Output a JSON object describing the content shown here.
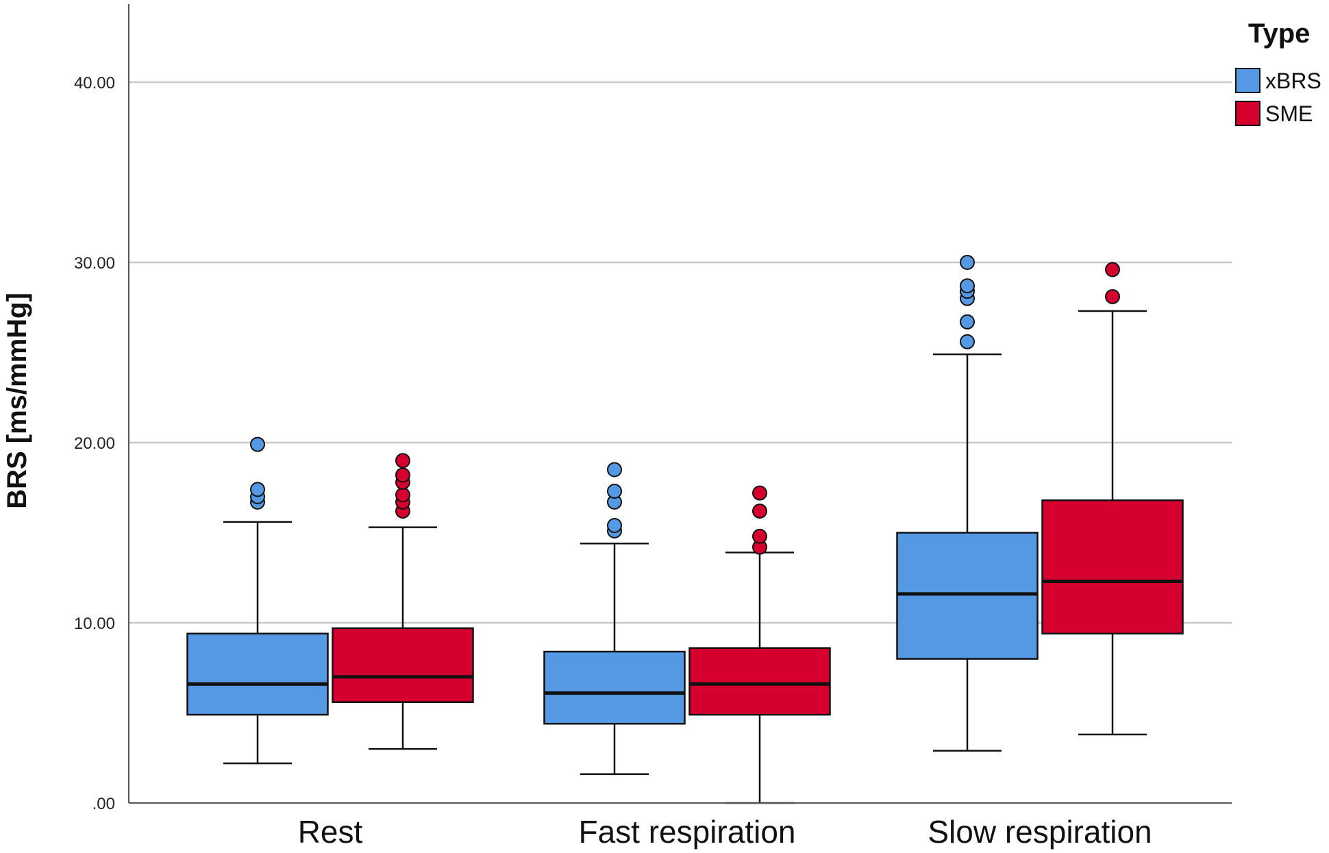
{
  "chart_data": {
    "type": "boxplot",
    "ylabel": "BRS [ms/mmHg]",
    "xlabel": "",
    "ylim": [
      0,
      44
    ],
    "yticks": [
      0,
      10,
      20,
      30,
      40
    ],
    "ytick_labels": [
      ".00",
      "10.00",
      "20.00",
      "30.00",
      "40.00"
    ],
    "grid": "horizontal",
    "legend": {
      "title": "Type",
      "position": "top-right",
      "entries": [
        {
          "label": "xBRS",
          "color": "#5599e4"
        },
        {
          "label": "SME",
          "color": "#d6002f"
        }
      ]
    },
    "categories": [
      "Rest",
      "Fast respiration",
      "Slow respiration"
    ],
    "series": [
      {
        "name": "xBRS",
        "color": "#5599e4",
        "boxes": [
          {
            "whisker_low": 2.2,
            "q1": 4.9,
            "median": 6.6,
            "q3": 9.4,
            "whisker_high": 15.6,
            "outliers": [
              16.7,
              17.0,
              17.4,
              19.9
            ]
          },
          {
            "whisker_low": 1.6,
            "q1": 4.4,
            "median": 6.1,
            "q3": 8.4,
            "whisker_high": 14.4,
            "outliers": [
              15.1,
              15.4,
              16.7,
              17.3,
              18.5
            ]
          },
          {
            "whisker_low": 2.9,
            "q1": 8.0,
            "median": 11.6,
            "q3": 15.0,
            "whisker_high": 24.9,
            "outliers": [
              25.6,
              26.7,
              28.0,
              28.4,
              28.7,
              30.0
            ]
          }
        ]
      },
      {
        "name": "SME",
        "color": "#d6002f",
        "boxes": [
          {
            "whisker_low": 3.0,
            "q1": 5.6,
            "median": 7.0,
            "q3": 9.7,
            "whisker_high": 15.3,
            "outliers": [
              16.2,
              16.7,
              17.1,
              17.8,
              18.2,
              19.0
            ]
          },
          {
            "whisker_low": 0.0,
            "q1": 4.9,
            "median": 6.6,
            "q3": 8.6,
            "whisker_high": 13.9,
            "outliers": [
              14.2,
              14.8,
              16.2,
              17.2
            ]
          },
          {
            "whisker_low": 3.8,
            "q1": 9.4,
            "median": 12.3,
            "q3": 16.8,
            "whisker_high": 27.3,
            "outliers": [
              28.1,
              29.6
            ]
          }
        ]
      }
    ]
  }
}
